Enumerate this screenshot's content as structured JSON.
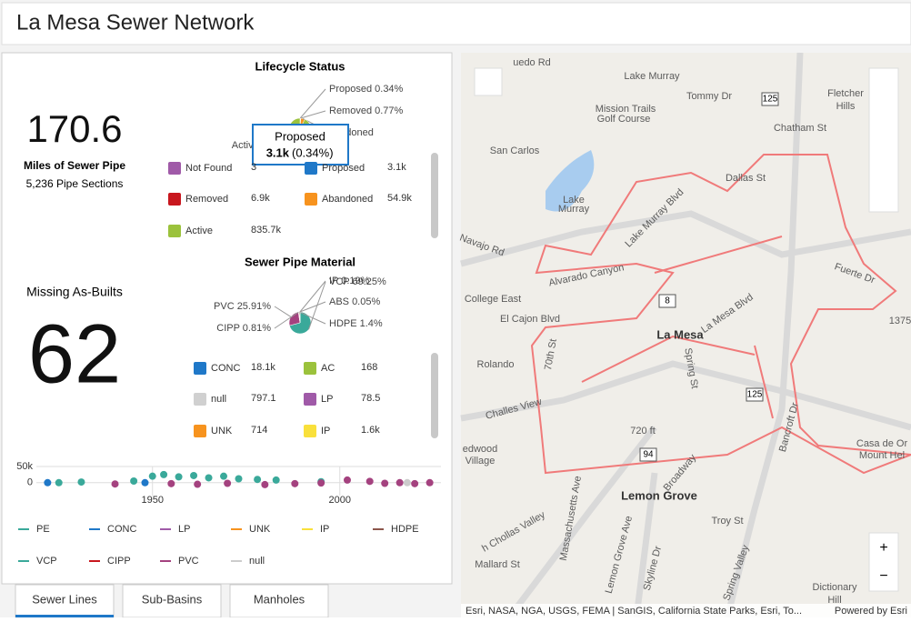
{
  "header": {
    "title": "La Mesa Sewer Network"
  },
  "stats": {
    "miles": {
      "value": "170.6",
      "label": "Miles of Sewer Pipe",
      "sub": "5,236 Pipe Sections"
    },
    "missing": {
      "label": "Missing As-Builts",
      "value": "62"
    }
  },
  "lifecycle": {
    "title": "Lifecycle Status",
    "type": "pie",
    "slices": [
      {
        "label": "Proposed 0.34%",
        "value": 0.34,
        "color": "#1f78c8"
      },
      {
        "label": "Removed 0.77%",
        "value": 0.77,
        "color": "#c8171e"
      },
      {
        "label": "andoned",
        "value": 6.07,
        "color": "#f7931e"
      },
      {
        "label": "Active 92",
        "value": 92.4,
        "color": "#9bc23c"
      }
    ],
    "tooltip": {
      "title": "Proposed",
      "value": "3.1k",
      "pct": "(0.34%)"
    },
    "legend": [
      {
        "name": "Not Found",
        "value": "3",
        "color": "#a05aa8"
      },
      {
        "name": "Proposed",
        "value": "3.1k",
        "color": "#1f78c8"
      },
      {
        "name": "Removed",
        "value": "6.9k",
        "color": "#c8171e"
      },
      {
        "name": "Abandoned",
        "value": "54.9k",
        "color": "#f7931e"
      },
      {
        "name": "Active",
        "value": "835.7k",
        "color": "#9bc23c"
      }
    ]
  },
  "material": {
    "title": "Sewer Pipe Material",
    "type": "pie",
    "slices": [
      {
        "label": "VCP 69.25%",
        "value": 69.25,
        "color": "#3aa99a"
      },
      {
        "label": "PVC 25.91%",
        "value": 25.91,
        "color": "#a4427f"
      },
      {
        "label": "CIPP 0.81%",
        "value": 0.81,
        "color": "#c8171e"
      },
      {
        "label": "HDPE 1.4%",
        "value": 1.4,
        "color": "#8c564b"
      },
      {
        "label": "ABS 0.05%",
        "value": 0.05,
        "color": "#555555"
      },
      {
        "label": "IP 0.19%",
        "value": 0.19,
        "color": "#f9e03b"
      }
    ],
    "legend": [
      {
        "name": "CONC",
        "value": "18.1k",
        "color": "#1f78c8"
      },
      {
        "name": "AC",
        "value": "168",
        "color": "#9bc23c"
      },
      {
        "name": "null",
        "value": "797.1",
        "color": "#d0d0d0"
      },
      {
        "name": "LP",
        "value": "78.5",
        "color": "#a05aa8"
      },
      {
        "name": "UNK",
        "value": "714",
        "color": "#f7931e"
      },
      {
        "name": "IP",
        "value": "1.6k",
        "color": "#f9e03b"
      }
    ]
  },
  "timeline": {
    "type": "scatter",
    "xlim": [
      1919,
      2027
    ],
    "ylim": [
      -40000,
      50000
    ],
    "xticks": [
      1950,
      2000
    ],
    "yticks": [
      {
        "value": 50000,
        "label": "50k"
      },
      0
    ],
    "series": [
      {
        "name": "PE",
        "color": "#3aa99a",
        "x": [],
        "values": []
      },
      {
        "name": "CONC",
        "color": "#1f78c8",
        "x": [
          1922,
          1948
        ],
        "values": [
          0,
          0
        ]
      },
      {
        "name": "LP",
        "color": "#a05aa8",
        "x": [],
        "values": []
      },
      {
        "name": "UNK",
        "color": "#f7931e",
        "x": [],
        "values": []
      },
      {
        "name": "IP",
        "color": "#f9e03b",
        "x": [],
        "values": []
      },
      {
        "name": "HDPE",
        "color": "#8c564b",
        "x": [],
        "values": []
      },
      {
        "name": "VCP",
        "color": "#3aa99a",
        "x": [
          1925,
          1931,
          1945,
          1950,
          1953,
          1957,
          1961,
          1965,
          1969,
          1973,
          1978,
          1983,
          1995
        ],
        "values": [
          0,
          2000,
          5000,
          20000,
          25000,
          18000,
          22000,
          15000,
          20000,
          12000,
          10000,
          8000,
          3000
        ],
        "marker": "circle"
      },
      {
        "name": "CIPP",
        "color": "#c8171e",
        "x": [],
        "values": []
      },
      {
        "name": "PVC",
        "color": "#a4427f",
        "x": [
          1940,
          1955,
          1962,
          1970,
          1980,
          1988,
          1995,
          2002,
          2008,
          2012,
          2016,
          2020,
          2024
        ],
        "values": [
          -4000,
          -3000,
          -5000,
          -2000,
          -6000,
          -3000,
          -1000,
          8000,
          4000,
          -2000,
          0,
          -3000,
          0
        ]
      },
      {
        "name": "null",
        "color": "#cccccc",
        "x": [
          2018
        ],
        "values": [
          0
        ]
      }
    ]
  },
  "tabs": {
    "items": [
      "Sewer Lines",
      "Sub-Basins",
      "Manholes"
    ],
    "active": 0
  },
  "map": {
    "labels": [
      "uedo Rd",
      "Lake Murray",
      "Tommy Dr",
      "Mission Trails",
      "Golf Course",
      "San Carlos",
      "Fletcher",
      "Hills",
      "Chatham St",
      "Lake",
      "Murray",
      "Lake Murray Blvd",
      "Dallas St",
      "Navajo Rd",
      "Alvarado Canyon",
      "Fuerte Dr",
      "College East",
      "El Cajon Blvd",
      "La Mesa",
      "La Mesa Blvd",
      "70th St",
      "Rolando",
      "Spring St",
      "Challes View",
      "720 ft",
      "Casa de Or",
      "Mount Hel",
      "edwood",
      "Village",
      "Lemon Grove",
      "Troy St",
      "Massachusetts Ave",
      "Lemon Grove Ave",
      "Broadway",
      "Mallard St",
      "Skyline Dr",
      "Spring Valley",
      "Dictionary",
      "Hill",
      "h Chollas Valley",
      "Bancroft Dr",
      "1375"
    ],
    "shields": [
      "125",
      "8",
      "125",
      "94"
    ],
    "controls": [
      "+",
      "−"
    ],
    "attribution": "Esri, NASA, NGA, USGS, FEMA | SanGIS, California State Parks, Esri, To...",
    "powered": "Powered by Esri"
  }
}
